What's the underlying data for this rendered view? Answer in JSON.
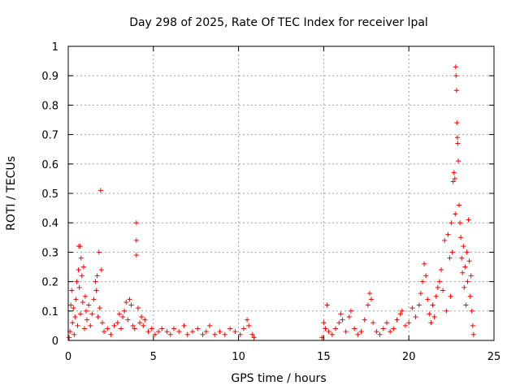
{
  "chart_data": {
    "type": "scatter",
    "title": "Day 298 of 2025, Rate Of TEC Index for receiver lpal",
    "xlabel": "GPS time / hours",
    "ylabel": "ROTI / TECUs",
    "xlim": [
      0,
      25
    ],
    "ylim": [
      0,
      1
    ],
    "xticks": [
      0,
      5,
      10,
      15,
      20,
      25
    ],
    "yticks": [
      0,
      0.1,
      0.2,
      0.3,
      0.4,
      0.5,
      0.6,
      0.7,
      0.8,
      0.9,
      1
    ],
    "ytick_labels": [
      "0",
      "0.1",
      "0.2",
      "0.3",
      "0.4",
      "0.5",
      "0.6",
      "0.7",
      "0.8",
      "0.9",
      "1"
    ],
    "grid": true,
    "marker": "+",
    "marker_color": "#ff0000",
    "series": [
      {
        "points": [
          [
            0.05,
            0.01
          ],
          [
            0.1,
            0.03
          ],
          [
            0.15,
            0.12
          ],
          [
            0.2,
            0.17
          ],
          [
            0.25,
            0.06
          ],
          [
            0.3,
            0.11
          ],
          [
            0.35,
            0.02
          ],
          [
            0.4,
            0.08
          ],
          [
            0.45,
            0.14
          ],
          [
            0.5,
            0.2
          ],
          [
            0.55,
            0.05
          ],
          [
            0.6,
            0.24
          ],
          [
            0.62,
            0.32
          ],
          [
            0.65,
            0.18
          ],
          [
            0.7,
            0.32
          ],
          [
            0.72,
            0.09
          ],
          [
            0.75,
            0.28
          ],
          [
            0.8,
            0.22
          ],
          [
            0.85,
            0.13
          ],
          [
            0.9,
            0.25
          ],
          [
            0.95,
            0.04
          ],
          [
            1.0,
            0.15
          ],
          [
            1.05,
            0.1
          ],
          [
            1.1,
            0.07
          ],
          [
            1.2,
            0.12
          ],
          [
            1.3,
            0.05
          ],
          [
            1.4,
            0.09
          ],
          [
            1.5,
            0.14
          ],
          [
            1.6,
            0.2
          ],
          [
            1.65,
            0.17
          ],
          [
            1.7,
            0.22
          ],
          [
            1.75,
            0.08
          ],
          [
            1.8,
            0.3
          ],
          [
            1.85,
            0.11
          ],
          [
            1.9,
            0.51
          ],
          [
            1.95,
            0.24
          ],
          [
            2.0,
            0.06
          ],
          [
            2.1,
            0.03
          ],
          [
            2.3,
            0.04
          ],
          [
            2.5,
            0.02
          ],
          [
            2.7,
            0.05
          ],
          [
            2.9,
            0.06
          ],
          [
            3.0,
            0.09
          ],
          [
            3.1,
            0.04
          ],
          [
            3.2,
            0.08
          ],
          [
            3.3,
            0.1
          ],
          [
            3.4,
            0.13
          ],
          [
            3.5,
            0.07
          ],
          [
            3.6,
            0.14
          ],
          [
            3.7,
            0.12
          ],
          [
            3.8,
            0.05
          ],
          [
            3.9,
            0.04
          ],
          [
            4.0,
            0.4
          ],
          [
            4.0,
            0.34
          ],
          [
            4.0,
            0.29
          ],
          [
            4.1,
            0.11
          ],
          [
            4.2,
            0.06
          ],
          [
            4.3,
            0.08
          ],
          [
            4.4,
            0.05
          ],
          [
            4.5,
            0.07
          ],
          [
            4.7,
            0.03
          ],
          [
            4.9,
            0.04
          ],
          [
            5.1,
            0.02
          ],
          [
            5.3,
            0.03
          ],
          [
            5.5,
            0.04
          ],
          [
            5.8,
            0.03
          ],
          [
            6.0,
            0.02
          ],
          [
            6.2,
            0.04
          ],
          [
            6.5,
            0.03
          ],
          [
            6.8,
            0.05
          ],
          [
            7.0,
            0.02
          ],
          [
            7.3,
            0.03
          ],
          [
            7.6,
            0.04
          ],
          [
            7.9,
            0.02
          ],
          [
            8.1,
            0.03
          ],
          [
            8.3,
            0.05
          ],
          [
            8.6,
            0.02
          ],
          [
            8.9,
            0.03
          ],
          [
            9.2,
            0.02
          ],
          [
            9.5,
            0.04
          ],
          [
            9.8,
            0.03
          ],
          [
            10.1,
            0.02
          ],
          [
            10.3,
            0.04
          ],
          [
            10.5,
            0.07
          ],
          [
            10.6,
            0.05
          ],
          [
            10.8,
            0.02
          ],
          [
            10.9,
            0.01
          ],
          [
            14.9,
            0.01
          ],
          [
            15.0,
            0.06
          ],
          [
            15.1,
            0.04
          ],
          [
            15.2,
            0.12
          ],
          [
            15.3,
            0.03
          ],
          [
            15.5,
            0.02
          ],
          [
            15.7,
            0.04
          ],
          [
            15.9,
            0.06
          ],
          [
            16.0,
            0.09
          ],
          [
            16.1,
            0.07
          ],
          [
            16.3,
            0.03
          ],
          [
            16.5,
            0.08
          ],
          [
            16.6,
            0.1
          ],
          [
            16.8,
            0.04
          ],
          [
            17.0,
            0.02
          ],
          [
            17.2,
            0.03
          ],
          [
            17.4,
            0.07
          ],
          [
            17.6,
            0.12
          ],
          [
            17.7,
            0.16
          ],
          [
            17.8,
            0.14
          ],
          [
            17.9,
            0.06
          ],
          [
            18.1,
            0.03
          ],
          [
            18.3,
            0.02
          ],
          [
            18.5,
            0.04
          ],
          [
            18.7,
            0.06
          ],
          [
            18.9,
            0.03
          ],
          [
            19.1,
            0.04
          ],
          [
            19.3,
            0.07
          ],
          [
            19.5,
            0.09
          ],
          [
            19.6,
            0.1
          ],
          [
            19.8,
            0.05
          ],
          [
            20.0,
            0.06
          ],
          [
            20.2,
            0.11
          ],
          [
            20.4,
            0.08
          ],
          [
            20.6,
            0.12
          ],
          [
            20.7,
            0.16
          ],
          [
            20.8,
            0.2
          ],
          [
            20.9,
            0.26
          ],
          [
            21.0,
            0.22
          ],
          [
            21.1,
            0.14
          ],
          [
            21.2,
            0.09
          ],
          [
            21.3,
            0.06
          ],
          [
            21.4,
            0.12
          ],
          [
            21.5,
            0.08
          ],
          [
            21.6,
            0.15
          ],
          [
            21.7,
            0.18
          ],
          [
            21.8,
            0.2
          ],
          [
            21.9,
            0.24
          ],
          [
            22.0,
            0.17
          ],
          [
            22.1,
            0.34
          ],
          [
            22.2,
            0.1
          ],
          [
            22.3,
            0.36
          ],
          [
            22.4,
            0.28
          ],
          [
            22.45,
            0.15
          ],
          [
            22.5,
            0.4
          ],
          [
            22.55,
            0.3
          ],
          [
            22.6,
            0.54
          ],
          [
            22.65,
            0.57
          ],
          [
            22.7,
            0.55
          ],
          [
            22.72,
            0.43
          ],
          [
            22.75,
            0.93
          ],
          [
            22.77,
            0.9
          ],
          [
            22.8,
            0.85
          ],
          [
            22.82,
            0.74
          ],
          [
            22.85,
            0.69
          ],
          [
            22.87,
            0.67
          ],
          [
            22.9,
            0.61
          ],
          [
            22.95,
            0.46
          ],
          [
            23.0,
            0.4
          ],
          [
            23.05,
            0.35
          ],
          [
            23.1,
            0.28
          ],
          [
            23.15,
            0.23
          ],
          [
            23.2,
            0.32
          ],
          [
            23.25,
            0.18
          ],
          [
            23.3,
            0.25
          ],
          [
            23.35,
            0.12
          ],
          [
            23.4,
            0.3
          ],
          [
            23.45,
            0.2
          ],
          [
            23.5,
            0.41
          ],
          [
            23.55,
            0.27
          ],
          [
            23.6,
            0.15
          ],
          [
            23.65,
            0.22
          ],
          [
            23.7,
            0.1
          ],
          [
            23.75,
            0.05
          ],
          [
            23.8,
            0.02
          ]
        ]
      }
    ]
  }
}
